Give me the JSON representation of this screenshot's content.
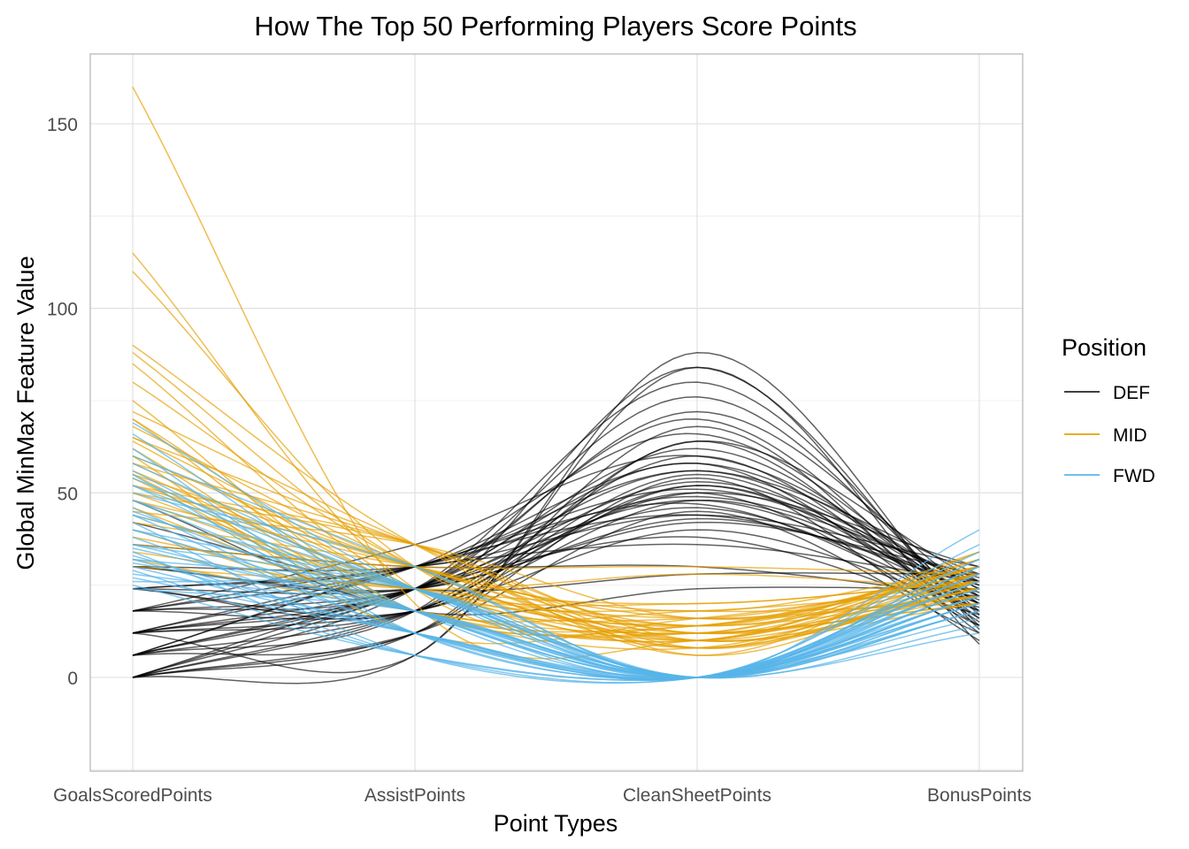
{
  "chart_data": {
    "type": "line",
    "title": "How The Top 50 Performing Players Score Points",
    "xlabel": "Point Types",
    "ylabel": "Global MinMax Feature Value",
    "categories": [
      "GoalsScoredPoints",
      "AssistPoints",
      "CleanSheetPoints",
      "BonusPoints"
    ],
    "ylim": [
      -25,
      168
    ],
    "yticks": [
      "0",
      "50",
      "100",
      "150"
    ],
    "grid": true,
    "legend": {
      "title": "Position",
      "placement": "right",
      "entries": [
        {
          "label": "DEF",
          "color": "#000000"
        },
        {
          "label": "MID",
          "color": "#E69F00"
        },
        {
          "label": "FWD",
          "color": "#56B4E9"
        }
      ]
    },
    "series": [
      {
        "group": "DEF",
        "values": [
          [
            0,
            6,
            84,
            9
          ],
          [
            6,
            18,
            84,
            14
          ],
          [
            12,
            24,
            76,
            18
          ],
          [
            18,
            24,
            72,
            22
          ],
          [
            0,
            12,
            68,
            12
          ],
          [
            24,
            18,
            64,
            26
          ],
          [
            6,
            12,
            64,
            15
          ],
          [
            12,
            24,
            62,
            20
          ],
          [
            0,
            18,
            60,
            16
          ],
          [
            18,
            30,
            58,
            24
          ],
          [
            6,
            24,
            56,
            22
          ],
          [
            24,
            30,
            56,
            28
          ],
          [
            12,
            18,
            55,
            18
          ],
          [
            0,
            12,
            54,
            10
          ],
          [
            18,
            24,
            53,
            25
          ],
          [
            6,
            18,
            52,
            20
          ],
          [
            12,
            30,
            51,
            26
          ],
          [
            30,
            24,
            50,
            30
          ],
          [
            0,
            18,
            50,
            14
          ],
          [
            24,
            30,
            49,
            27
          ],
          [
            6,
            24,
            48,
            21
          ],
          [
            18,
            18,
            48,
            23
          ],
          [
            12,
            24,
            46,
            20
          ],
          [
            0,
            12,
            45,
            12
          ],
          [
            30,
            30,
            44,
            30
          ],
          [
            6,
            30,
            44,
            25
          ],
          [
            24,
            24,
            42,
            28
          ],
          [
            12,
            18,
            40,
            19
          ],
          [
            0,
            24,
            38,
            17
          ],
          [
            18,
            30,
            36,
            26
          ],
          [
            36,
            30,
            30,
            22
          ],
          [
            42,
            24,
            28,
            28
          ],
          [
            48,
            18,
            24,
            24
          ],
          [
            6,
            24,
            70,
            16
          ],
          [
            12,
            30,
            66,
            20
          ],
          [
            18,
            36,
            60,
            24
          ],
          [
            0,
            24,
            58,
            14
          ],
          [
            24,
            18,
            52,
            22
          ],
          [
            6,
            30,
            47,
            18
          ],
          [
            30,
            24,
            43,
            26
          ],
          [
            12,
            6,
            88,
            13
          ],
          [
            0,
            24,
            80,
            17
          ]
        ]
      },
      {
        "group": "MID",
        "values": [
          [
            160,
            20,
            10,
            28
          ],
          [
            115,
            24,
            12,
            30
          ],
          [
            110,
            30,
            14,
            26
          ],
          [
            90,
            36,
            8,
            32
          ],
          [
            88,
            30,
            12,
            24
          ],
          [
            85,
            24,
            16,
            28
          ],
          [
            80,
            30,
            10,
            22
          ],
          [
            75,
            18,
            14,
            30
          ],
          [
            72,
            36,
            6,
            34
          ],
          [
            70,
            24,
            18,
            20
          ],
          [
            68,
            30,
            8,
            26
          ],
          [
            65,
            36,
            12,
            30
          ],
          [
            64,
            24,
            10,
            24
          ],
          [
            62,
            18,
            14,
            28
          ],
          [
            60,
            30,
            16,
            22
          ],
          [
            58,
            36,
            8,
            26
          ],
          [
            56,
            24,
            12,
            32
          ],
          [
            55,
            30,
            10,
            20
          ],
          [
            54,
            18,
            18,
            24
          ],
          [
            52,
            36,
            6,
            28
          ],
          [
            50,
            24,
            14,
            30
          ],
          [
            48,
            30,
            12,
            22
          ],
          [
            46,
            18,
            10,
            26
          ],
          [
            45,
            36,
            16,
            28
          ],
          [
            44,
            24,
            8,
            24
          ],
          [
            42,
            30,
            14,
            30
          ],
          [
            40,
            18,
            12,
            20
          ],
          [
            38,
            24,
            20,
            26
          ],
          [
            36,
            30,
            30,
            28
          ],
          [
            34,
            24,
            28,
            24
          ],
          [
            32,
            18,
            10,
            30
          ],
          [
            30,
            24,
            14,
            22
          ],
          [
            60,
            12,
            16,
            26
          ],
          [
            55,
            18,
            8,
            28
          ],
          [
            50,
            36,
            10,
            24
          ],
          [
            65,
            30,
            18,
            30
          ],
          [
            70,
            18,
            12,
            20
          ],
          [
            58,
            24,
            20,
            26
          ],
          [
            52,
            30,
            10,
            34
          ],
          [
            48,
            24,
            16,
            22
          ]
        ]
      },
      {
        "group": "FWD",
        "values": [
          [
            69,
            24,
            0,
            22
          ],
          [
            66,
            18,
            0,
            28
          ],
          [
            62,
            12,
            0,
            20
          ],
          [
            60,
            30,
            0,
            32
          ],
          [
            58,
            24,
            0,
            24
          ],
          [
            56,
            18,
            0,
            18
          ],
          [
            55,
            12,
            0,
            26
          ],
          [
            54,
            24,
            0,
            30
          ],
          [
            52,
            18,
            0,
            22
          ],
          [
            50,
            30,
            0,
            40
          ],
          [
            48,
            24,
            0,
            20
          ],
          [
            46,
            12,
            0,
            24
          ],
          [
            45,
            18,
            0,
            28
          ],
          [
            44,
            24,
            0,
            18
          ],
          [
            42,
            6,
            0,
            26
          ],
          [
            40,
            18,
            0,
            22
          ],
          [
            38,
            12,
            0,
            30
          ],
          [
            36,
            24,
            0,
            20
          ],
          [
            35,
            18,
            0,
            24
          ],
          [
            34,
            6,
            0,
            28
          ],
          [
            33,
            12,
            0,
            18
          ],
          [
            32,
            24,
            0,
            26
          ],
          [
            31,
            18,
            0,
            22
          ],
          [
            30,
            12,
            0,
            30
          ],
          [
            29,
            6,
            0,
            20
          ],
          [
            28,
            18,
            0,
            24
          ],
          [
            27,
            12,
            0,
            28
          ],
          [
            26,
            24,
            0,
            18
          ],
          [
            25,
            6,
            0,
            22
          ],
          [
            24,
            18,
            0,
            26
          ],
          [
            52,
            24,
            0,
            14
          ],
          [
            48,
            18,
            0,
            36
          ],
          [
            44,
            12,
            0,
            16
          ],
          [
            40,
            24,
            0,
            32
          ],
          [
            36,
            18,
            0,
            12
          ],
          [
            32,
            12,
            0,
            34
          ]
        ]
      }
    ]
  }
}
